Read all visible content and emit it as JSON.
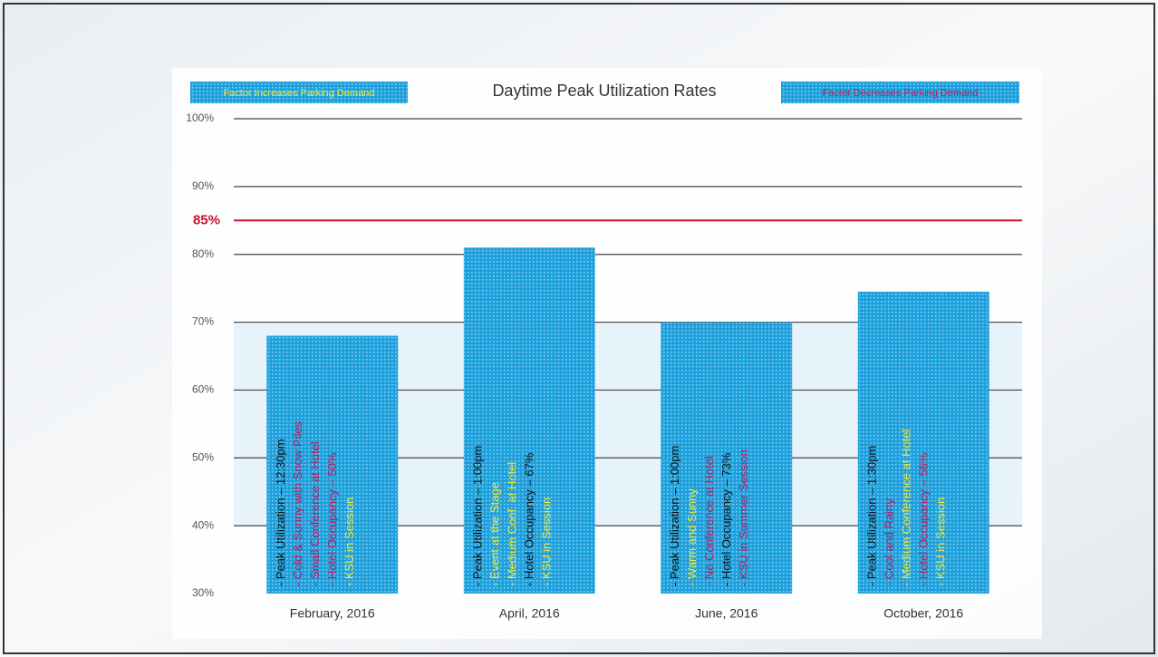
{
  "chart_data": {
    "type": "bar",
    "title": "Daytime Peak Utilization Rates",
    "legend": [
      {
        "name": "Factor Increases Parking Demand",
        "color": "#f4e83a"
      },
      {
        "name": "Factor Decreases Parking Demand",
        "color": "#c0185a"
      }
    ],
    "categories": [
      "February, 2016",
      "April, 2016",
      "June, 2016",
      "October, 2016"
    ],
    "values": [
      68,
      81,
      70,
      74.5
    ],
    "color": "#1ea0dc",
    "ylim": [
      30,
      100
    ],
    "yticks": [
      {
        "value": 30,
        "label": "30%"
      },
      {
        "value": 40,
        "label": "40%"
      },
      {
        "value": 50,
        "label": "50%"
      },
      {
        "value": 60,
        "label": "60%"
      },
      {
        "value": 70,
        "label": "70%"
      },
      {
        "value": 80,
        "label": "80%"
      },
      {
        "value": 90,
        "label": "90%"
      },
      {
        "value": 100,
        "label": "100%"
      }
    ],
    "grid": true,
    "reference_line": {
      "value": 85,
      "label": "85%",
      "color": "#c8102e"
    },
    "bar_notes": [
      [
        {
          "text": "- Peak Utilization – 12:30pm",
          "color": "#111111"
        },
        {
          "text": "- Cold & Sunny with Snow Piles",
          "color": "#c0185a"
        },
        {
          "text": "- Small Conference at Hotel",
          "color": "#c0185a"
        },
        {
          "text": "- Hotel Occupancy – 50%",
          "color": "#c0185a"
        },
        {
          "text": "- KSU in Session",
          "color": "#f4e83a"
        }
      ],
      [
        {
          "text": "- Peak Utilization – 1:00pm",
          "color": "#111111"
        },
        {
          "text": "- Event at the Stage",
          "color": "#f4e83a"
        },
        {
          "text": "- Medium Conf. at Hotel",
          "color": "#f4e83a"
        },
        {
          "text": "- Hotel Occupancy – 67%",
          "color": "#111111"
        },
        {
          "text": "- KSU in Session",
          "color": "#f4e83a"
        }
      ],
      [
        {
          "text": "- Peak Utilization – 1:00pm",
          "color": "#111111"
        },
        {
          "text": "- Warm and Sunny",
          "color": "#f4e83a"
        },
        {
          "text": "- No Conference at Hotel",
          "color": "#c0185a"
        },
        {
          "text": "- Hotel Occupancy – 73%",
          "color": "#111111"
        },
        {
          "text": "- KSU in Summer Session",
          "color": "#c0185a"
        }
      ],
      [
        {
          "text": "- Peak Utilization – 1:30pm",
          "color": "#111111"
        },
        {
          "text": "- Cool and Rainy",
          "color": "#c0185a"
        },
        {
          "text": "- Medium Conference at Hotel",
          "color": "#f4e83a"
        },
        {
          "text": "- Hotel Occupancy – 56%",
          "color": "#c0185a"
        },
        {
          "text": "- KSU in Session",
          "color": "#f4e83a"
        }
      ]
    ]
  }
}
